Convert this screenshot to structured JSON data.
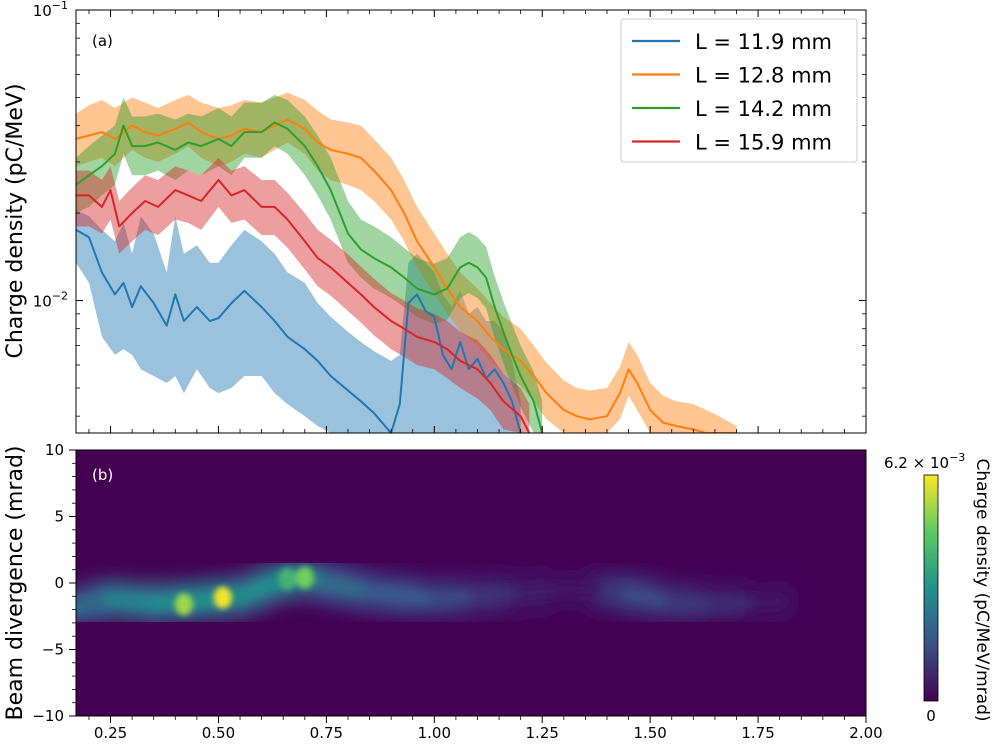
{
  "chart_data": [
    {
      "type": "line",
      "panel_label": "(a)",
      "ylabel": "Charge density (pC/MeV)",
      "xlim": [
        0.17,
        2.0
      ],
      "ylim_log": [
        0.0035,
        0.1
      ],
      "yscale": "log",
      "y_tick_labels": [
        {
          "value": 0.1,
          "base": "10",
          "exp": "−1"
        },
        {
          "value": 0.01,
          "base": "10",
          "exp": "−2"
        }
      ],
      "series": [
        {
          "name": "L = 11.9 mm",
          "color": "#1f77b4",
          "x": [
            0.17,
            0.2,
            0.23,
            0.26,
            0.28,
            0.3,
            0.32,
            0.35,
            0.38,
            0.4,
            0.42,
            0.45,
            0.48,
            0.5,
            0.53,
            0.56,
            0.6,
            0.63,
            0.66,
            0.7,
            0.73,
            0.76,
            0.8,
            0.83,
            0.86,
            0.9,
            0.92,
            0.94,
            0.96,
            0.98,
            1.0,
            1.02,
            1.04,
            1.06,
            1.08,
            1.1,
            1.12,
            1.14,
            1.16,
            1.18,
            1.2
          ],
          "y": [
            0.0175,
            0.0165,
            0.0125,
            0.0105,
            0.0115,
            0.0095,
            0.0112,
            0.0098,
            0.0082,
            0.0105,
            0.0085,
            0.0095,
            0.0085,
            0.0087,
            0.0098,
            0.0108,
            0.0095,
            0.0085,
            0.0075,
            0.0068,
            0.0062,
            0.0055,
            0.0049,
            0.0045,
            0.0041,
            0.0035,
            0.0044,
            0.0098,
            0.0105,
            0.0092,
            0.0088,
            0.0065,
            0.0058,
            0.0072,
            0.0058,
            0.0063,
            0.0054,
            0.0058,
            0.0052,
            0.0045,
            0.0035
          ],
          "lower": [
            0.0135,
            0.0115,
            0.0075,
            0.0065,
            0.0068,
            0.0065,
            0.0058,
            0.0055,
            0.0052,
            0.0055,
            0.0048,
            0.0058,
            0.005,
            0.0048,
            0.005,
            0.0055,
            0.0055,
            0.0048,
            0.0044,
            0.004,
            0.0037,
            0.0035,
            0.0035,
            0.0035,
            0.0035,
            0.0035,
            0.0035,
            0.0035,
            0.0035,
            0.0035,
            0.0035,
            0.0035,
            0.0035,
            0.0035,
            0.0035,
            0.0035,
            0.0035,
            0.0035,
            0.0035,
            0.0035,
            0.0035
          ],
          "upper": [
            0.0205,
            0.0195,
            0.0175,
            0.016,
            0.0185,
            0.0145,
            0.0195,
            0.017,
            0.0125,
            0.0195,
            0.0145,
            0.0155,
            0.0135,
            0.0135,
            0.0155,
            0.0175,
            0.016,
            0.0145,
            0.0125,
            0.0115,
            0.0098,
            0.0088,
            0.0078,
            0.0072,
            0.0067,
            0.0062,
            0.0065,
            0.0135,
            0.0145,
            0.0135,
            0.0125,
            0.0105,
            0.0095,
            0.0108,
            0.009,
            0.0095,
            0.0085,
            0.0085,
            0.0078,
            0.0062,
            0.0045
          ]
        },
        {
          "name": "L = 12.8 mm",
          "color": "#ff7f0e",
          "x": [
            0.17,
            0.2,
            0.23,
            0.26,
            0.3,
            0.33,
            0.36,
            0.4,
            0.43,
            0.46,
            0.5,
            0.53,
            0.56,
            0.6,
            0.63,
            0.66,
            0.7,
            0.73,
            0.76,
            0.8,
            0.83,
            0.86,
            0.9,
            0.93,
            0.96,
            1.0,
            1.03,
            1.06,
            1.1,
            1.13,
            1.16,
            1.2,
            1.23,
            1.26,
            1.3,
            1.33,
            1.36,
            1.4,
            1.43,
            1.45,
            1.47,
            1.5,
            1.53,
            1.56,
            1.6,
            1.63,
            1.66,
            1.7
          ],
          "y": [
            0.036,
            0.037,
            0.038,
            0.036,
            0.04,
            0.038,
            0.037,
            0.039,
            0.041,
            0.038,
            0.036,
            0.037,
            0.039,
            0.038,
            0.04,
            0.042,
            0.039,
            0.035,
            0.033,
            0.032,
            0.031,
            0.028,
            0.024,
            0.02,
            0.016,
            0.013,
            0.011,
            0.0095,
            0.0085,
            0.0075,
            0.0068,
            0.0062,
            0.0055,
            0.0048,
            0.0042,
            0.004,
            0.0039,
            0.004,
            0.0048,
            0.0058,
            0.0052,
            0.0042,
            0.0038,
            0.0037,
            0.0036,
            0.0035,
            0.0035,
            0.0035
          ],
          "lower": [
            0.029,
            0.03,
            0.031,
            0.029,
            0.033,
            0.031,
            0.03,
            0.032,
            0.034,
            0.031,
            0.029,
            0.03,
            0.032,
            0.031,
            0.033,
            0.035,
            0.032,
            0.028,
            0.026,
            0.025,
            0.024,
            0.022,
            0.019,
            0.016,
            0.013,
            0.0105,
            0.009,
            0.0078,
            0.007,
            0.0062,
            0.0056,
            0.0051,
            0.0045,
            0.0039,
            0.0035,
            0.0035,
            0.0035,
            0.0035,
            0.0039,
            0.0047,
            0.0042,
            0.0035,
            0.0035,
            0.0035,
            0.0035,
            0.0035,
            0.0035,
            0.0035
          ],
          "upper": [
            0.044,
            0.047,
            0.049,
            0.046,
            0.05,
            0.048,
            0.046,
            0.049,
            0.051,
            0.048,
            0.046,
            0.047,
            0.049,
            0.048,
            0.05,
            0.052,
            0.049,
            0.045,
            0.042,
            0.041,
            0.04,
            0.036,
            0.031,
            0.026,
            0.021,
            0.017,
            0.0145,
            0.0125,
            0.011,
            0.0098,
            0.0088,
            0.008,
            0.007,
            0.0061,
            0.0053,
            0.005,
            0.0049,
            0.005,
            0.0059,
            0.0072,
            0.0065,
            0.0052,
            0.0047,
            0.0045,
            0.0044,
            0.0042,
            0.004,
            0.0037
          ]
        },
        {
          "name": "L = 14.2 mm",
          "color": "#2ca02c",
          "x": [
            0.17,
            0.2,
            0.23,
            0.26,
            0.28,
            0.3,
            0.33,
            0.36,
            0.4,
            0.43,
            0.46,
            0.5,
            0.53,
            0.56,
            0.6,
            0.63,
            0.66,
            0.7,
            0.73,
            0.76,
            0.8,
            0.83,
            0.86,
            0.9,
            0.93,
            0.96,
            1.0,
            1.03,
            1.06,
            1.08,
            1.1,
            1.12,
            1.14,
            1.16,
            1.18,
            1.2,
            1.23,
            1.25
          ],
          "y": [
            0.025,
            0.027,
            0.029,
            0.032,
            0.04,
            0.034,
            0.034,
            0.035,
            0.033,
            0.035,
            0.034,
            0.036,
            0.034,
            0.038,
            0.038,
            0.041,
            0.039,
            0.034,
            0.029,
            0.024,
            0.017,
            0.015,
            0.014,
            0.013,
            0.012,
            0.011,
            0.0105,
            0.011,
            0.013,
            0.0135,
            0.013,
            0.012,
            0.0095,
            0.0078,
            0.0065,
            0.0055,
            0.0045,
            0.0035
          ],
          "lower": [
            0.02,
            0.021,
            0.023,
            0.025,
            0.032,
            0.027,
            0.027,
            0.028,
            0.026,
            0.028,
            0.027,
            0.029,
            0.027,
            0.031,
            0.031,
            0.034,
            0.032,
            0.027,
            0.023,
            0.019,
            0.0135,
            0.012,
            0.011,
            0.0102,
            0.0095,
            0.0088,
            0.0083,
            0.0086,
            0.0102,
            0.0106,
            0.0102,
            0.0094,
            0.0074,
            0.0061,
            0.0051,
            0.0043,
            0.0035,
            0.0035
          ],
          "upper": [
            0.031,
            0.034,
            0.037,
            0.04,
            0.05,
            0.043,
            0.043,
            0.044,
            0.042,
            0.044,
            0.043,
            0.046,
            0.043,
            0.048,
            0.048,
            0.051,
            0.049,
            0.043,
            0.037,
            0.031,
            0.022,
            0.019,
            0.018,
            0.0165,
            0.0152,
            0.014,
            0.0134,
            0.014,
            0.0165,
            0.0172,
            0.0165,
            0.0153,
            0.0121,
            0.0099,
            0.0083,
            0.007,
            0.0057,
            0.0045
          ]
        },
        {
          "name": "L = 15.9 mm",
          "color": "#d62728",
          "x": [
            0.17,
            0.2,
            0.23,
            0.25,
            0.27,
            0.3,
            0.33,
            0.36,
            0.4,
            0.43,
            0.46,
            0.5,
            0.53,
            0.56,
            0.6,
            0.63,
            0.66,
            0.7,
            0.73,
            0.76,
            0.8,
            0.83,
            0.86,
            0.9,
            0.93,
            0.96,
            1.0,
            1.03,
            1.06,
            1.1,
            1.13,
            1.16,
            1.2,
            1.22
          ],
          "y": [
            0.023,
            0.023,
            0.021,
            0.024,
            0.018,
            0.02,
            0.022,
            0.021,
            0.024,
            0.023,
            0.022,
            0.026,
            0.023,
            0.024,
            0.021,
            0.021,
            0.019,
            0.016,
            0.014,
            0.013,
            0.0115,
            0.0105,
            0.0095,
            0.0085,
            0.008,
            0.0075,
            0.0072,
            0.0068,
            0.0062,
            0.0058,
            0.0052,
            0.0045,
            0.004,
            0.0035
          ],
          "lower": [
            0.018,
            0.018,
            0.017,
            0.019,
            0.0145,
            0.016,
            0.0175,
            0.0168,
            0.019,
            0.0185,
            0.0175,
            0.021,
            0.0185,
            0.019,
            0.0168,
            0.0168,
            0.0152,
            0.0128,
            0.0112,
            0.0104,
            0.0092,
            0.0084,
            0.0076,
            0.0068,
            0.0064,
            0.006,
            0.0058,
            0.0054,
            0.005,
            0.0046,
            0.0042,
            0.0036,
            0.0035,
            0.0035
          ],
          "upper": [
            0.028,
            0.028,
            0.026,
            0.029,
            0.022,
            0.0245,
            0.027,
            0.026,
            0.029,
            0.028,
            0.027,
            0.031,
            0.028,
            0.029,
            0.026,
            0.026,
            0.0235,
            0.02,
            0.0175,
            0.0162,
            0.0144,
            0.0131,
            0.0119,
            0.0106,
            0.01,
            0.0094,
            0.009,
            0.0085,
            0.0078,
            0.0073,
            0.0065,
            0.0056,
            0.005,
            0.0044
          ]
        }
      ],
      "legend": "top-right"
    },
    {
      "type": "heatmap",
      "panel_label": "(b)",
      "ylabel": "Beam divergence (mrad)",
      "xlim": [
        0.17,
        2.0
      ],
      "ylim": [
        -10,
        10
      ],
      "x_ticks": [
        "0.25",
        "0.50",
        "0.75",
        "1.00",
        "1.25",
        "1.50",
        "1.75",
        "2.00"
      ],
      "x_tick_values": [
        0.25,
        0.5,
        0.75,
        1.0,
        1.25,
        1.5,
        1.75,
        2.0
      ],
      "y_ticks": [
        "−10",
        "−5",
        "0",
        "5",
        "10"
      ],
      "y_tick_values": [
        -10,
        -5,
        0,
        5,
        10
      ],
      "ridge": {
        "x": [
          0.17,
          0.25,
          0.35,
          0.45,
          0.55,
          0.65,
          0.7,
          0.75,
          0.85,
          1.0,
          1.1,
          1.2,
          1.3,
          1.4,
          1.45,
          1.55,
          1.65,
          1.75,
          1.8
        ],
        "y": [
          -1.8,
          -1.2,
          -1.5,
          -1.3,
          -1.0,
          0.2,
          0.4,
          0.0,
          -0.7,
          -1.2,
          -1.0,
          -0.8,
          -0.5,
          -0.6,
          -0.8,
          -1.5,
          -1.6,
          -1.5,
          -1.4
        ],
        "intensity": [
          0.3,
          0.5,
          0.55,
          0.6,
          0.6,
          0.55,
          0.6,
          0.45,
          0.38,
          0.3,
          0.22,
          0.14,
          0.08,
          0.06,
          0.32,
          0.22,
          0.18,
          0.12,
          0.04
        ]
      },
      "hotspots": [
        {
          "x": 0.42,
          "y": -1.6,
          "intensity": 0.85
        },
        {
          "x": 0.51,
          "y": -1.1,
          "intensity": 0.98
        },
        {
          "x": 0.7,
          "y": 0.4,
          "intensity": 0.78
        },
        {
          "x": 0.66,
          "y": 0.3,
          "intensity": 0.65
        }
      ],
      "colorbar": {
        "label": "Charge density (pC/MeV/mrad)",
        "max_mantissa": "6.2",
        "max_sign": " × ",
        "max_base": "10",
        "max_exp": "−3",
        "min_label": "0",
        "colormap": "viridis"
      }
    }
  ]
}
